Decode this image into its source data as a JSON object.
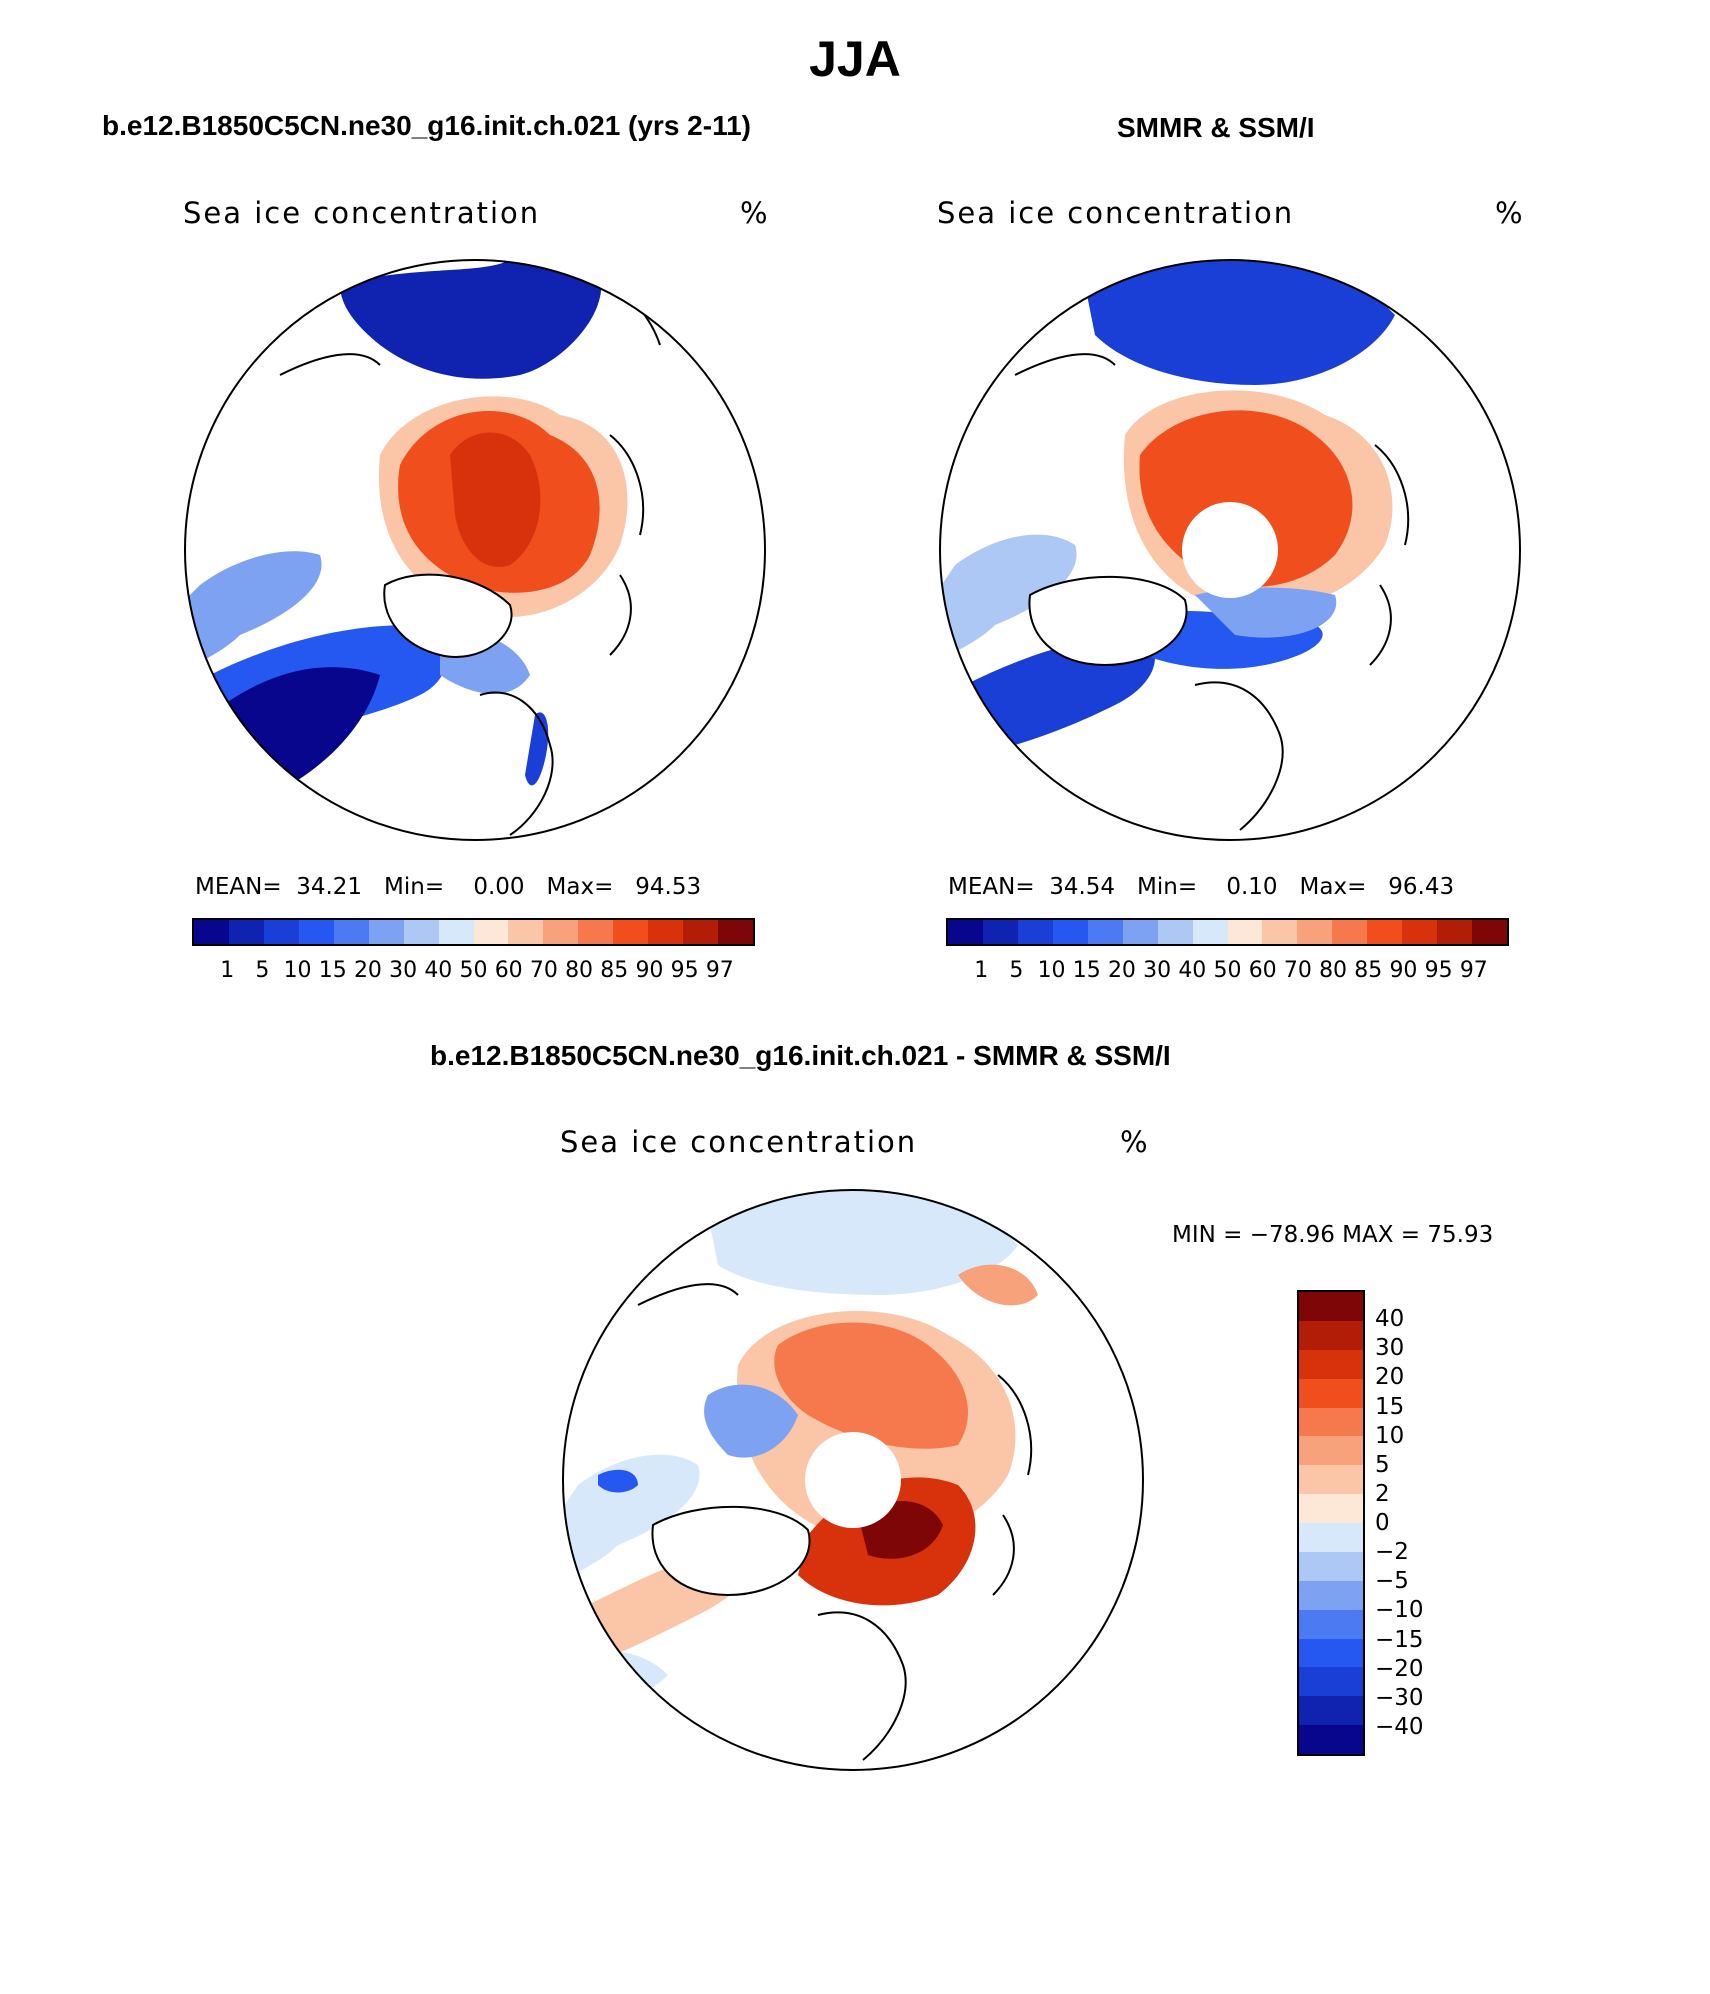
{
  "title": "JJA",
  "panels": [
    {
      "id": "model",
      "heading": "b.e12.B1850C5CN.ne30_g16.init.ch.021 (yrs 2-11)",
      "map_label": "Sea ice concentration",
      "units": "%",
      "stats": {
        "mean_label": "MEAN=",
        "mean": "34.21",
        "min_label": "Min=",
        "min": "0.00",
        "max_label": "Max=",
        "max": "94.53"
      }
    },
    {
      "id": "obs",
      "heading": "SMMR & SSM/I",
      "map_label": "Sea ice concentration",
      "units": "%",
      "stats": {
        "mean_label": "MEAN=",
        "mean": "34.54",
        "min_label": "Min=",
        "min": "0.10",
        "max_label": "Max=",
        "max": "96.43"
      }
    },
    {
      "id": "diff",
      "heading": "b.e12.B1850C5CN.ne30_g16.init.ch.021 - SMMR & SSM/I",
      "map_label": "Sea ice concentration",
      "units": "%",
      "stats_text": "MIN = −78.96 MAX =   75.93"
    }
  ],
  "colorbars": {
    "concentration": {
      "colors": [
        "#08068c",
        "#0f22b0",
        "#1a3fd6",
        "#2458f0",
        "#4c7af2",
        "#7ea2f2",
        "#aec8f5",
        "#d8e8fb",
        "#fde7d6",
        "#fbc6a8",
        "#f7a27a",
        "#f5794c",
        "#f04e1c",
        "#d8320c",
        "#b21d08",
        "#7f0606"
      ],
      "ticks": [
        "1",
        "5",
        "10",
        "15",
        "20",
        "30",
        "40",
        "50",
        "60",
        "70",
        "80",
        "85",
        "90",
        "95",
        "97"
      ]
    },
    "difference": {
      "colors": [
        "#7f0606",
        "#b21d08",
        "#d8320c",
        "#f04e1c",
        "#f5794c",
        "#f7a27a",
        "#fbc6a8",
        "#fde7d6",
        "#d8e8fb",
        "#aec8f5",
        "#7ea2f2",
        "#4c7af2",
        "#2458f0",
        "#1a3fd6",
        "#0f22b0",
        "#08068c"
      ],
      "ticks": [
        "40",
        "30",
        "20",
        "15",
        "10",
        "5",
        "2",
        "0",
        "−2",
        "−5",
        "−10",
        "−15",
        "−20",
        "−30",
        "−40"
      ]
    }
  }
}
